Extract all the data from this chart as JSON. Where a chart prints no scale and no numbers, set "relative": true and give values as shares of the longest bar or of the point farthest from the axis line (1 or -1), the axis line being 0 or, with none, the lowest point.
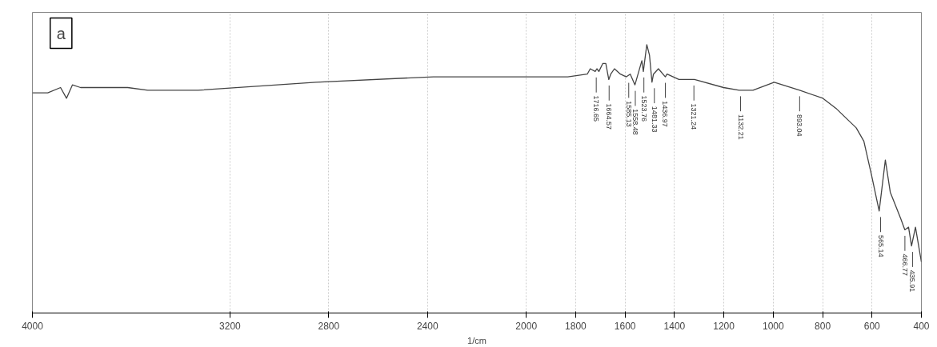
{
  "chart_data": {
    "type": "line",
    "relative": true,
    "xlabel": "1/cm",
    "xlim": [
      4000,
      400
    ],
    "xticks": [
      4000,
      3200,
      2800,
      2400,
      2000,
      1800,
      1600,
      1400,
      1200,
      1000,
      800,
      600,
      400
    ],
    "grid": "x",
    "marker": "none",
    "line_style": "solid",
    "series": [
      {
        "color": "#444444",
        "x": [
          4000,
          3938,
          3886,
          3862,
          3838,
          3805,
          3743,
          3676,
          3614,
          3533,
          3410,
          3329,
          2852,
          2376,
          2000,
          1832,
          1753,
          1741,
          1721,
          1714,
          1706,
          1690,
          1678,
          1666,
          1658,
          1643,
          1619,
          1595,
          1579,
          1560,
          1532,
          1526,
          1512,
          1501,
          1491,
          1485,
          1465,
          1437,
          1430,
          1382,
          1319,
          1201,
          1138,
          1082,
          996,
          893,
          799,
          743,
          664,
          633,
          601,
          571,
          546,
          526,
          483,
          467,
          452,
          440,
          424,
          400
        ],
        "values": [
          0.82,
          0.82,
          0.84,
          0.8,
          0.85,
          0.84,
          0.84,
          0.84,
          0.84,
          0.83,
          0.83,
          0.83,
          0.86,
          0.88,
          0.88,
          0.88,
          0.89,
          0.91,
          0.9,
          0.91,
          0.9,
          0.93,
          0.93,
          0.87,
          0.89,
          0.91,
          0.89,
          0.88,
          0.89,
          0.85,
          0.94,
          0.9,
          1.0,
          0.96,
          0.86,
          0.89,
          0.91,
          0.88,
          0.89,
          0.87,
          0.87,
          0.84,
          0.83,
          0.83,
          0.86,
          0.83,
          0.8,
          0.76,
          0.69,
          0.64,
          0.51,
          0.38,
          0.57,
          0.45,
          0.35,
          0.31,
          0.32,
          0.25,
          0.32,
          0.19
        ]
      }
    ],
    "annotations": [
      "a",
      {
        "text": "1716.65",
        "x": 1716.65,
        "y": 0.9
      },
      {
        "text": "1664.57",
        "x": 1664.57,
        "y": 0.87
      },
      {
        "text": "1585.13",
        "x": 1585.13,
        "y": 0.88
      },
      {
        "text": "1558.48",
        "x": 1558.48,
        "y": 0.85
      },
      {
        "text": "1523.76",
        "x": 1523.76,
        "y": 0.9
      },
      {
        "text": "1481.33",
        "x": 1481.33,
        "y": 0.86
      },
      {
        "text": "1436.97",
        "x": 1436.97,
        "y": 0.88
      },
      {
        "text": "1321.24",
        "x": 1321.24,
        "y": 0.87
      },
      {
        "text": "1132.21",
        "x": 1132.21,
        "y": 0.83
      },
      {
        "text": "893.04",
        "x": 893.04,
        "y": 0.83
      },
      {
        "text": "565.14",
        "x": 565.14,
        "y": 0.38
      },
      {
        "text": "466.77",
        "x": 466.77,
        "y": 0.31
      },
      {
        "text": "435.91",
        "x": 435.91,
        "y": 0.25
      }
    ]
  }
}
